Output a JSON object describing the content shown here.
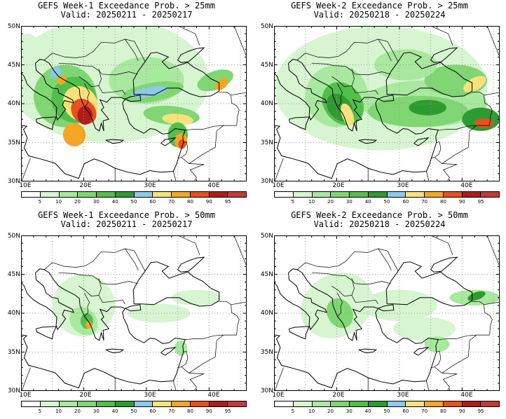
{
  "panels": [
    {
      "title": "GEFS Week-1 Exceedance Prob. > 25mm",
      "valid": "Valid: 20250211 - 20250217",
      "threshold": "25mm",
      "week": 1
    },
    {
      "title": "GEFS Week-2 Exceedance Prob. > 25mm",
      "valid": "Valid: 20250218 - 20250224",
      "threshold": "25mm",
      "week": 2
    },
    {
      "title": "GEFS Week-1 Exceedance Prob. > 50mm",
      "valid": "Valid: 20250211 - 20250217",
      "threshold": "50mm",
      "week": 1
    },
    {
      "title": "GEFS Week-2 Exceedance Prob. > 50mm",
      "valid": "Valid: 20250218 - 20250224",
      "threshold": "50mm",
      "week": 2
    }
  ],
  "lat_labels": [
    "50N",
    "45N",
    "40N",
    "35N",
    "30N"
  ],
  "lon_labels": [
    "10E",
    "20E",
    "30E",
    "40E"
  ],
  "colorbar": {
    "labels": [
      "5",
      "10",
      "20",
      "30",
      "40",
      "50",
      "60",
      "70",
      "80",
      "90",
      "95"
    ],
    "colors": [
      "#ffffff",
      "#d6f5d0",
      "#a9e89f",
      "#7fd672",
      "#52bf4b",
      "#2e9b30",
      "#8ec9ea",
      "#f7e27c",
      "#f5a623",
      "#e8501c",
      "#b01c1c",
      "#c23a3a"
    ]
  },
  "extent": {
    "lon_min": 10,
    "lon_max": 46,
    "lat_min": 30,
    "lat_max": 50
  }
}
